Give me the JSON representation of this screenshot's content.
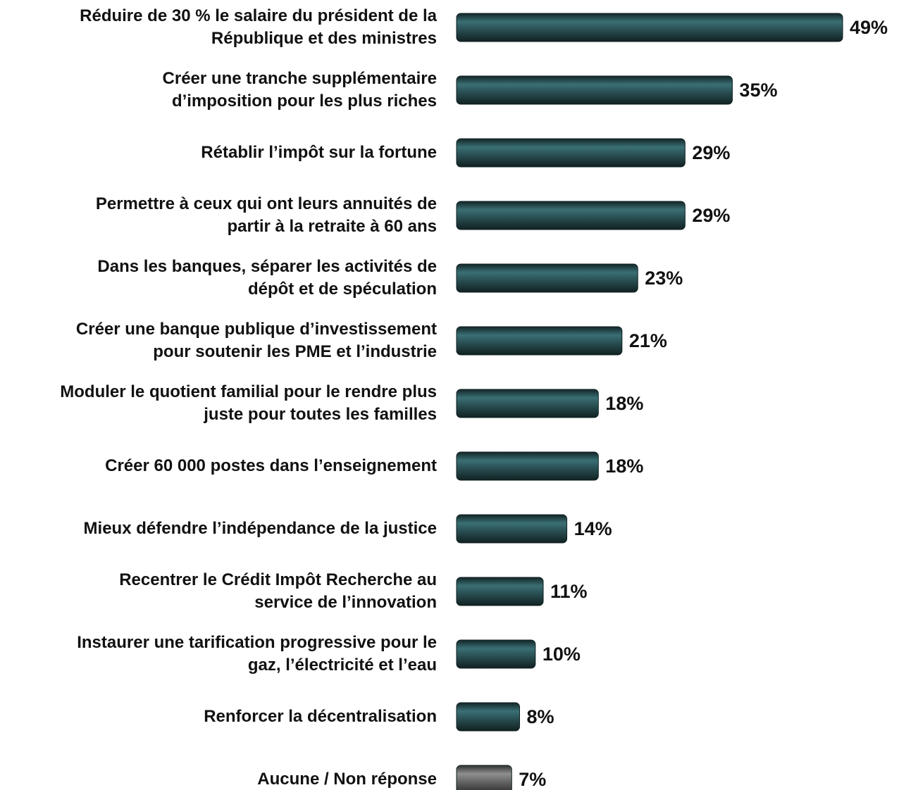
{
  "chart_data": {
    "type": "barh",
    "categories": [
      "Réduire de 30 % le salaire du président de la\nRépublique et des ministres",
      "Créer une tranche supplémentaire\nd’imposition pour les plus riches",
      "Rétablir l’impôt sur la fortune",
      "Permettre à ceux qui ont leurs annuités de\npartir à la retraite à 60 ans",
      "Dans les banques, séparer les activités de\ndépôt et de spéculation",
      "Créer une banque publique d’investissement\npour soutenir les PME et l’industrie",
      "Moduler le quotient familial pour le rendre plus\njuste pour toutes les familles",
      "Créer 60 000 postes dans l’enseignement",
      "Mieux défendre l’indépendance de la justice",
      "Recentrer le Crédit Impôt Recherche au\nservice de l’innovation",
      "Instaurer une tarification progressive pour le\ngaz, l’électricité et l’eau",
      "Renforcer la décentralisation",
      "Aucune / Non réponse"
    ],
    "values": [
      49,
      35,
      29,
      29,
      23,
      21,
      18,
      18,
      14,
      11,
      10,
      8,
      7
    ],
    "value_labels": [
      "49%",
      "35%",
      "29%",
      "29%",
      "23%",
      "21%",
      "18%",
      "18%",
      "14%",
      "11%",
      "10%",
      "8%",
      "7%"
    ],
    "colors": [
      "#2b5256",
      "#2b5256",
      "#2b5256",
      "#2b5256",
      "#2b5256",
      "#2b5256",
      "#2b5256",
      "#2b5256",
      "#2b5256",
      "#2b5256",
      "#2b5256",
      "#2b5256",
      "#6a6a6a"
    ]
  }
}
